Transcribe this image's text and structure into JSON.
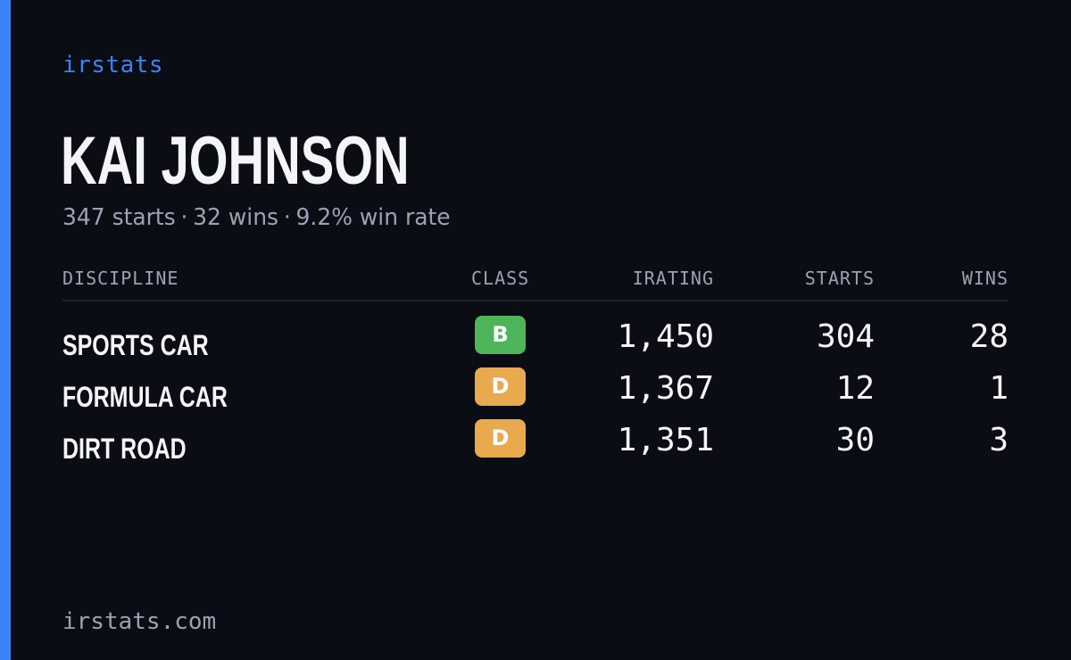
{
  "brand": "irstats",
  "player": {
    "name": "KAI JOHNSON",
    "starts_text": "347 starts",
    "wins_text": "32 wins",
    "win_rate_text": "9.2% win rate",
    "separator": "·"
  },
  "table": {
    "headers": {
      "discipline": "DISCIPLINE",
      "class": "CLASS",
      "irating": "IRATING",
      "starts": "STARTS",
      "wins": "WINS"
    },
    "rows": [
      {
        "discipline": "SPORTS CAR",
        "class": "B",
        "class_color": "#4fb55b",
        "irating": "1,450",
        "starts": "304",
        "wins": "28"
      },
      {
        "discipline": "FORMULA CAR",
        "class": "D",
        "class_color": "#e8a94f",
        "irating": "1,367",
        "starts": "12",
        "wins": "1"
      },
      {
        "discipline": "DIRT ROAD",
        "class": "D",
        "class_color": "#e8a94f",
        "irating": "1,351",
        "starts": "30",
        "wins": "3"
      }
    ]
  },
  "footer": {
    "url": "irstats.com"
  },
  "colors": {
    "background": "#0a0d14",
    "accent": "#3b82f6",
    "muted_text": "#9aa3b4",
    "primary_text": "#f3f5f9"
  }
}
